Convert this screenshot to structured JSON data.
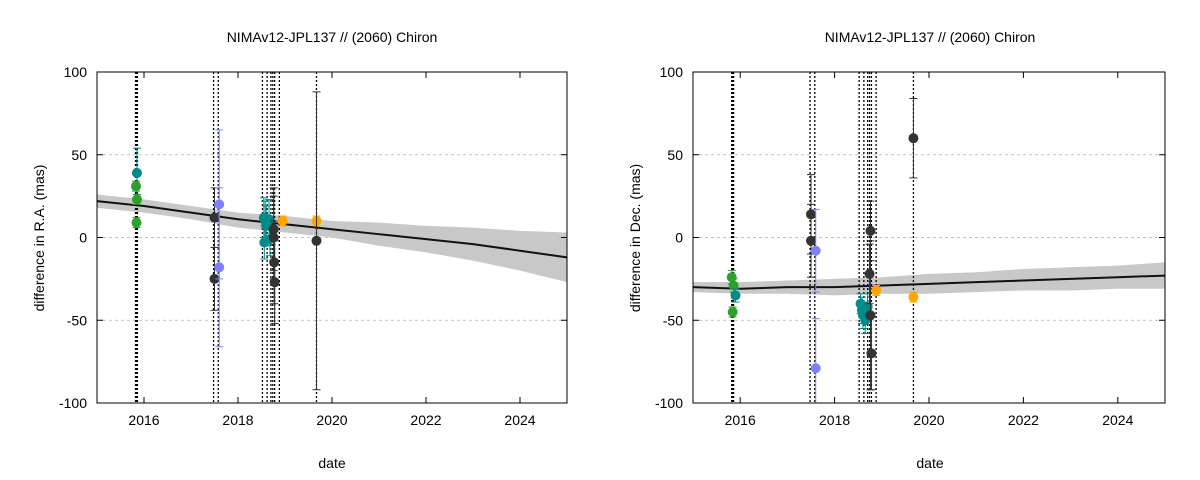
{
  "chart_data": [
    {
      "type": "scatter",
      "title": "NIMAv12-JPL137 // (2060) Chiron",
      "xlabel": "date",
      "ylabel": "difference in R.A. (mas)",
      "xlim": [
        2015.0,
        2025.0
      ],
      "ylim": [
        -100,
        100
      ],
      "x_ticks": [
        2016,
        2018,
        2020,
        2022,
        2024
      ],
      "x_tick_labels": [
        "2016",
        "2018",
        "2020",
        "2022",
        "2024"
      ],
      "y_ticks": [
        -100,
        -50,
        0,
        50,
        100
      ],
      "y_tick_labels": [
        "-100",
        "-50",
        "0",
        "50",
        "100"
      ],
      "grid": true,
      "vertical_lines_x": [
        2015.82,
        2015.84,
        2015.86,
        2017.48,
        2017.58,
        2018.52,
        2018.62,
        2018.7,
        2018.74,
        2018.78,
        2018.88,
        2019.67
      ],
      "model_band": {
        "x": [
          2015.0,
          2016.0,
          2017.0,
          2018.0,
          2019.0,
          2020.0,
          2021.0,
          2022.0,
          2023.0,
          2024.0,
          2025.0
        ],
        "center": [
          22,
          19,
          15,
          11,
          8,
          5,
          2,
          -1,
          -4,
          -8,
          -12
        ],
        "upper": [
          26,
          23,
          19,
          15,
          13,
          10,
          9,
          7,
          6,
          4,
          3
        ],
        "lower": [
          18,
          15,
          11,
          6,
          3,
          0,
          -5,
          -9,
          -14,
          -20,
          -27
        ]
      },
      "points": [
        {
          "x": 2015.85,
          "y": 39,
          "err": 15,
          "color": "#008b8b"
        },
        {
          "x": 2015.83,
          "y": 31,
          "err": 3,
          "color": "#2ca02c"
        },
        {
          "x": 2015.85,
          "y": 23,
          "err": 3,
          "color": "#2ca02c"
        },
        {
          "x": 2015.84,
          "y": 9,
          "err": 3,
          "color": "#2ca02c"
        },
        {
          "x": 2017.5,
          "y": 12,
          "err": 18,
          "color": "#333333"
        },
        {
          "x": 2017.5,
          "y": -25,
          "err": 19,
          "color": "#333333"
        },
        {
          "x": 2017.6,
          "y": 20,
          "err": 45,
          "color": "#8080ff"
        },
        {
          "x": 2017.6,
          "y": -18,
          "err": 48,
          "color": "#8080ff"
        },
        {
          "x": 2018.55,
          "y": 12,
          "err": 12,
          "color": "#008b8b"
        },
        {
          "x": 2018.58,
          "y": 10,
          "err": 12,
          "color": "#008b8b"
        },
        {
          "x": 2018.6,
          "y": 7,
          "err": 12,
          "color": "#008b8b"
        },
        {
          "x": 2018.56,
          "y": -3,
          "err": 10,
          "color": "#008b8b"
        },
        {
          "x": 2018.66,
          "y": 11,
          "err": 12,
          "color": "#008b8b"
        },
        {
          "x": 2018.68,
          "y": -1,
          "err": 10,
          "color": "#008b8b"
        },
        {
          "x": 2018.76,
          "y": 5,
          "err": 25,
          "color": "#333333"
        },
        {
          "x": 2018.76,
          "y": 0,
          "err": 25,
          "color": "#333333"
        },
        {
          "x": 2018.77,
          "y": -15,
          "err": 25,
          "color": "#333333"
        },
        {
          "x": 2018.78,
          "y": -27,
          "err": 25,
          "color": "#333333"
        },
        {
          "x": 2018.95,
          "y": 10,
          "err": 3,
          "color": "#ffa500"
        },
        {
          "x": 2019.67,
          "y": 10,
          "err": 3,
          "color": "#ffa500"
        },
        {
          "x": 2019.67,
          "y": -2,
          "err": 90,
          "color": "#333333"
        }
      ]
    },
    {
      "type": "scatter",
      "title": "NIMAv12-JPL137 // (2060) Chiron",
      "xlabel": "date",
      "ylabel": "difference in Dec. (mas)",
      "xlim": [
        2015.0,
        2025.0
      ],
      "ylim": [
        -100,
        100
      ],
      "x_ticks": [
        2016,
        2018,
        2020,
        2022,
        2024
      ],
      "x_tick_labels": [
        "2016",
        "2018",
        "2020",
        "2022",
        "2024"
      ],
      "y_ticks": [
        -100,
        -50,
        0,
        50,
        100
      ],
      "y_tick_labels": [
        "-100",
        "-50",
        "0",
        "50",
        "100"
      ],
      "grid": true,
      "vertical_lines_x": [
        2015.82,
        2015.84,
        2015.86,
        2017.48,
        2017.58,
        2018.52,
        2018.62,
        2018.7,
        2018.74,
        2018.78,
        2018.88,
        2019.67
      ],
      "model_band": {
        "x": [
          2015.0,
          2016.0,
          2017.0,
          2018.0,
          2019.0,
          2020.0,
          2021.0,
          2022.0,
          2023.0,
          2024.0,
          2025.0
        ],
        "center": [
          -30,
          -31,
          -30,
          -30,
          -29,
          -28,
          -27,
          -26,
          -25,
          -24,
          -23
        ],
        "upper": [
          -27,
          -27,
          -26,
          -25,
          -24,
          -22,
          -21,
          -19,
          -18,
          -17,
          -15
        ],
        "lower": [
          -33,
          -34,
          -34,
          -35,
          -34,
          -34,
          -33,
          -32,
          -32,
          -31,
          -31
        ]
      },
      "points": [
        {
          "x": 2015.82,
          "y": -24,
          "err": 4,
          "color": "#2ca02c"
        },
        {
          "x": 2015.86,
          "y": -29,
          "err": 4,
          "color": "#2ca02c"
        },
        {
          "x": 2015.9,
          "y": -35,
          "err": 4,
          "color": "#008b8b"
        },
        {
          "x": 2015.84,
          "y": -45,
          "err": 3,
          "color": "#2ca02c"
        },
        {
          "x": 2017.5,
          "y": 14,
          "err": 24,
          "color": "#333333"
        },
        {
          "x": 2017.5,
          "y": -2,
          "err": 22,
          "color": "#333333"
        },
        {
          "x": 2017.6,
          "y": -8,
          "err": 25,
          "color": "#8080ff"
        },
        {
          "x": 2017.6,
          "y": -79,
          "err": 30,
          "color": "#8080ff"
        },
        {
          "x": 2018.55,
          "y": -40,
          "err": 6,
          "color": "#008b8b"
        },
        {
          "x": 2018.58,
          "y": -44,
          "err": 8,
          "color": "#008b8b"
        },
        {
          "x": 2018.6,
          "y": -47,
          "err": 8,
          "color": "#008b8b"
        },
        {
          "x": 2018.65,
          "y": -50,
          "err": 8,
          "color": "#008b8b"
        },
        {
          "x": 2018.7,
          "y": -42,
          "err": 8,
          "color": "#008b8b"
        },
        {
          "x": 2018.76,
          "y": 4,
          "err": 18,
          "color": "#333333"
        },
        {
          "x": 2018.74,
          "y": -22,
          "err": 18,
          "color": "#333333"
        },
        {
          "x": 2018.76,
          "y": -47,
          "err": 45,
          "color": "#333333"
        },
        {
          "x": 2018.78,
          "y": -70,
          "err": 22,
          "color": "#333333"
        },
        {
          "x": 2018.88,
          "y": -32,
          "err": 3,
          "color": "#ffa500"
        },
        {
          "x": 2019.67,
          "y": -36,
          "err": 3,
          "color": "#ffa500"
        },
        {
          "x": 2019.67,
          "y": 60,
          "err": 24,
          "color": "#333333"
        }
      ]
    }
  ]
}
